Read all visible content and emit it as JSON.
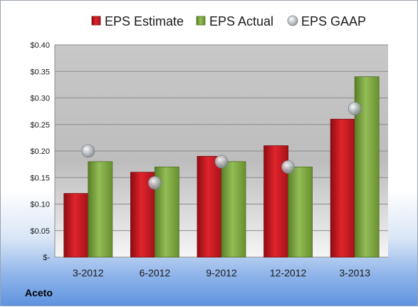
{
  "company": "Aceto",
  "colors": {
    "estimate": "#c8141c",
    "actual": "#7aa63c",
    "gaap": "#b8bec4"
  },
  "chart_data": {
    "type": "bar",
    "categories": [
      "3-2012",
      "6-2012",
      "9-2012",
      "12-2012",
      "3-2013"
    ],
    "series": [
      {
        "name": "EPS Estimate",
        "kind": "bar",
        "values": [
          0.12,
          0.16,
          0.19,
          0.21,
          0.26
        ]
      },
      {
        "name": "EPS Actual",
        "kind": "bar",
        "values": [
          0.18,
          0.17,
          0.18,
          0.17,
          0.34
        ]
      },
      {
        "name": "EPS GAAP",
        "kind": "marker",
        "values": [
          0.2,
          0.14,
          0.18,
          0.17,
          0.28
        ]
      }
    ],
    "ylim": [
      0,
      0.4
    ],
    "yticks": [
      0,
      0.05,
      0.1,
      0.15,
      0.2,
      0.25,
      0.3,
      0.35,
      0.4
    ],
    "ytick_labels": [
      "$-",
      "$0.05",
      "$0.10",
      "$0.15",
      "$0.20",
      "$0.25",
      "$0.30",
      "$0.35",
      "$0.40"
    ],
    "grid": true,
    "legend": "top"
  }
}
